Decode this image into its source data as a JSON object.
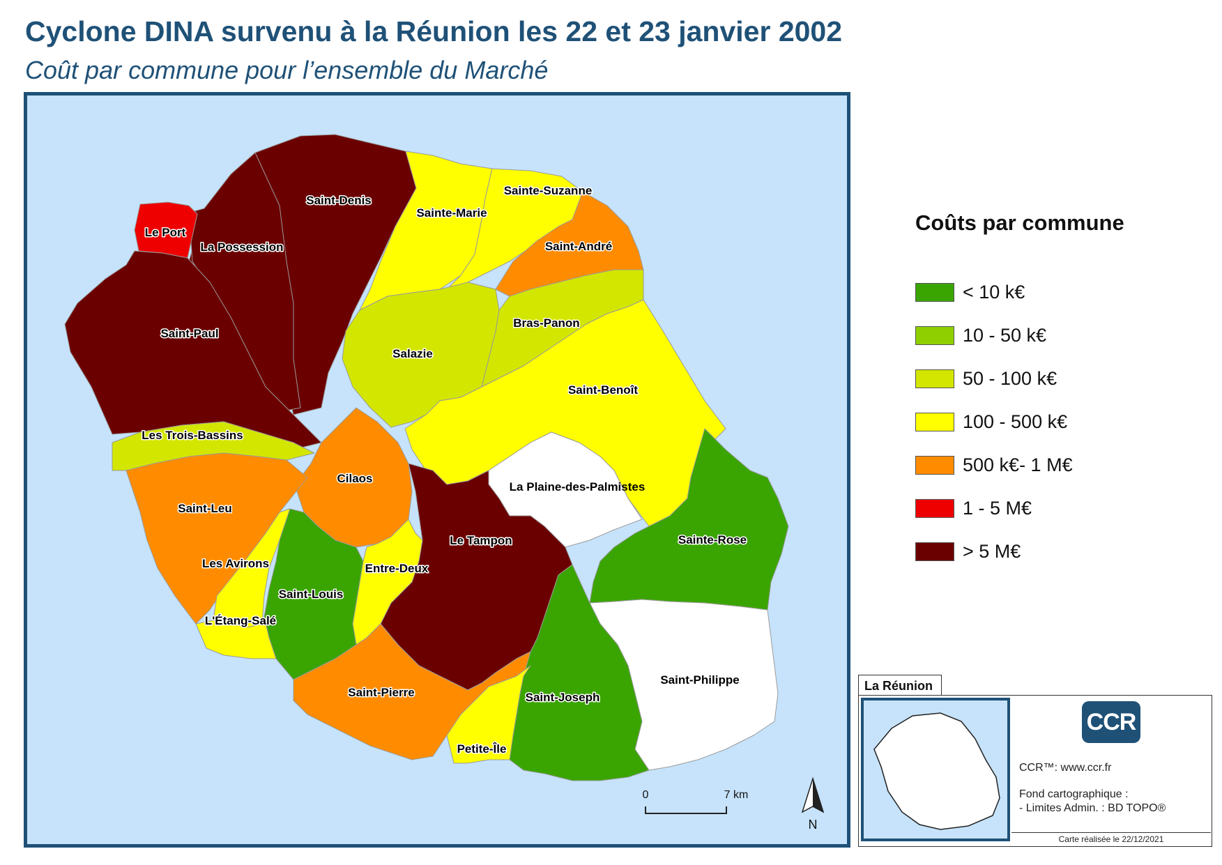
{
  "header": {
    "title": "Cyclone DINA survenu à la Réunion les 22 et 23 janvier 2002",
    "subtitle": "Coût par commune pour l’ensemble du Marché"
  },
  "legend": {
    "title": "Coûts par commune",
    "classes": [
      {
        "label": "< 10 k€",
        "color": "#3aa500"
      },
      {
        "label": "10 - 50 k€",
        "color": "#8fcf00"
      },
      {
        "label": "50 - 100 k€",
        "color": "#d3e600"
      },
      {
        "label": "100 - 500 k€",
        "color": "#ffff00"
      },
      {
        "label": "500 k€- 1 M€",
        "color": "#ff8c00"
      },
      {
        "label": "1 - 5 M€",
        "color": "#ee0000"
      },
      {
        "label": "> 5 M€",
        "color": "#6b0000"
      }
    ]
  },
  "map": {
    "sea_color": "#c6e3fb",
    "no_data_color": "#ffffff",
    "communes": [
      {
        "name": "Saint-Denis",
        "class": "> 5 M€"
      },
      {
        "name": "Le Port",
        "class": "1 - 5 M€"
      },
      {
        "name": "La Possession",
        "class": "> 5 M€"
      },
      {
        "name": "Saint-Paul",
        "class": "> 5 M€"
      },
      {
        "name": "Sainte-Marie",
        "class": "100 - 500 k€"
      },
      {
        "name": "Sainte-Suzanne",
        "class": "100 - 500 k€"
      },
      {
        "name": "Saint-André",
        "class": "500 k€- 1 M€"
      },
      {
        "name": "Bras-Panon",
        "class": "50 - 100 k€"
      },
      {
        "name": "Salazie",
        "class": "50 - 100 k€"
      },
      {
        "name": "Saint-Benoît",
        "class": "100 - 500 k€"
      },
      {
        "name": "Les Trois-Bassins",
        "class": "50 - 100 k€"
      },
      {
        "name": "Cilaos",
        "class": "500 k€- 1 M€"
      },
      {
        "name": "La Plaine-des-Palmistes",
        "class": ""
      },
      {
        "name": "Saint-Leu",
        "class": "500 k€- 1 M€"
      },
      {
        "name": "Le Tampon",
        "class": "> 5 M€"
      },
      {
        "name": "Sainte-Rose",
        "class": "< 10 k€"
      },
      {
        "name": "Les Avirons",
        "class": "100 - 500 k€"
      },
      {
        "name": "Entre-Deux",
        "class": "100 - 500 k€"
      },
      {
        "name": "Saint-Louis",
        "class": "< 10 k€"
      },
      {
        "name": "L'Étang-Salé",
        "class": "100 - 500 k€"
      },
      {
        "name": "Saint-Philippe",
        "class": ""
      },
      {
        "name": "Saint-Pierre",
        "class": "500 k€- 1 M€"
      },
      {
        "name": "Saint-Joseph",
        "class": "< 10 k€"
      },
      {
        "name": "Petite-Île",
        "class": "100 - 500 k€"
      }
    ],
    "scale": {
      "start": "0",
      "end": "7 km"
    },
    "north": "N"
  },
  "inset": {
    "tab_label": "La Réunion",
    "logo_text": "CCR",
    "line1": "CCR™: www.ccr.fr",
    "line2": "Fond cartographique :",
    "line3": "- Limites Admin. : BD TOPO®",
    "credit": "Carte réalisée le 22/12/2021"
  }
}
